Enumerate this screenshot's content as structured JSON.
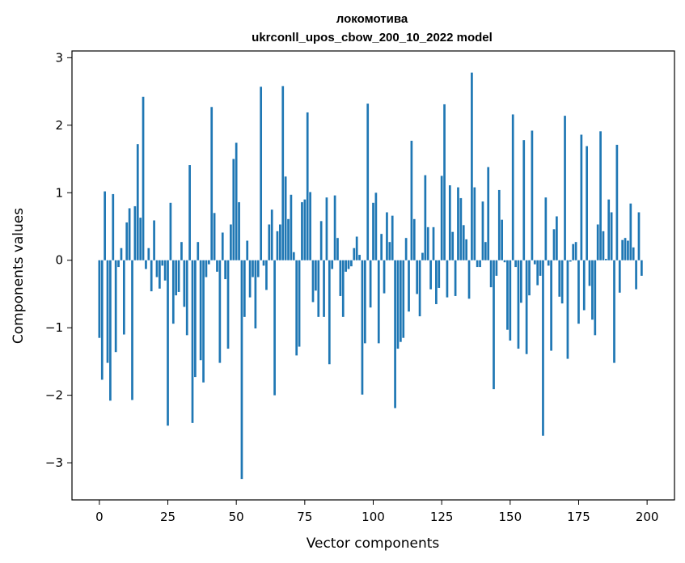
{
  "chart_data": {
    "type": "bar",
    "title": "локомотива",
    "subtitle": "ukrconll_upos_cbow_200_10_2022 model",
    "xlabel": "Vector components",
    "ylabel": "Components values",
    "xlim": [
      -10,
      210
    ],
    "ylim": [
      -3.55,
      3.1
    ],
    "xticks": [
      0,
      25,
      50,
      75,
      100,
      125,
      150,
      175,
      200
    ],
    "yticks": [
      -3,
      -2,
      -1,
      0,
      1,
      2,
      3
    ],
    "xtick_labels": [
      "0",
      "25",
      "50",
      "75",
      "100",
      "125",
      "150",
      "175",
      "200"
    ],
    "ytick_labels": [
      "−3",
      "−2",
      "−1",
      "0",
      "1",
      "2",
      "3"
    ],
    "grid": false,
    "bar_color": "#1f77b4",
    "values": [
      -1.15,
      -1.77,
      1.02,
      -1.52,
      -2.08,
      0.98,
      -1.36,
      -0.1,
      0.18,
      -1.1,
      0.56,
      0.77,
      -2.07,
      0.8,
      1.72,
      0.63,
      2.42,
      -0.13,
      0.18,
      -0.46,
      0.59,
      -0.25,
      -0.42,
      -0.08,
      -0.3,
      -2.45,
      0.85,
      -0.94,
      -0.52,
      -0.47,
      0.27,
      -0.69,
      -1.11,
      1.41,
      -2.41,
      -1.73,
      0.27,
      -1.48,
      -1.81,
      -0.25,
      -0.06,
      2.27,
      0.7,
      -0.17,
      -1.52,
      0.41,
      -0.28,
      -1.31,
      0.53,
      1.5,
      1.74,
      0.86,
      -3.24,
      -0.84,
      0.29,
      -0.55,
      -0.25,
      -1.01,
      -0.25,
      2.57,
      -0.08,
      -0.44,
      0.53,
      0.75,
      -2.0,
      0.43,
      0.53,
      2.58,
      1.24,
      0.61,
      0.97,
      0.12,
      -1.41,
      -1.28,
      0.86,
      0.9,
      2.19,
      1.01,
      -0.62,
      -0.45,
      -0.84,
      0.58,
      -0.84,
      0.93,
      -1.54,
      -0.13,
      0.96,
      0.33,
      -0.53,
      -0.84,
      -0.17,
      -0.13,
      -0.09,
      0.18,
      0.35,
      0.08,
      -1.99,
      -1.23,
      2.32,
      -0.7,
      0.85,
      1.0,
      -1.23,
      0.39,
      -0.49,
      0.71,
      0.27,
      0.66,
      -2.19,
      -1.31,
      -1.21,
      -1.15,
      0.33,
      -0.76,
      1.77,
      0.61,
      -0.5,
      -0.83,
      0.11,
      1.26,
      0.49,
      -0.43,
      0.49,
      -0.65,
      -0.41,
      1.25,
      2.31,
      -0.55,
      1.11,
      0.42,
      -0.53,
      1.08,
      0.92,
      0.52,
      0.31,
      -0.57,
      2.78,
      1.08,
      -0.1,
      -0.1,
      0.87,
      0.27,
      1.38,
      -0.4,
      -1.91,
      -0.23,
      1.04,
      0.6,
      -0.03,
      -1.03,
      -1.19,
      2.16,
      -0.1,
      -1.31,
      -0.63,
      1.78,
      -1.39,
      -0.52,
      1.92,
      -0.06,
      -0.37,
      -0.23,
      -2.6,
      0.93,
      -0.08,
      -1.34,
      0.46,
      0.65,
      -0.54,
      -0.64,
      2.14,
      -1.46,
      -0.02,
      0.24,
      0.27,
      -0.94,
      1.86,
      -0.74,
      1.69,
      -0.38,
      -0.88,
      -1.11,
      0.53,
      1.91,
      0.43,
      0.02,
      0.9,
      0.71,
      -1.52,
      1.71,
      -0.48,
      0.3,
      0.33,
      0.29,
      0.84,
      0.19,
      -0.43,
      0.71,
      -0.23
    ]
  }
}
